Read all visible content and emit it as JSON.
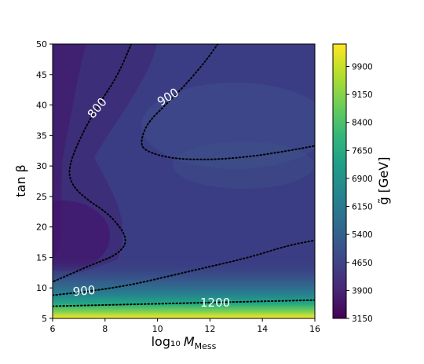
{
  "chart_data": {
    "type": "heatmap",
    "subtype": "filled-contour",
    "xlabel": "log₁₀",
    "xlabel_symbol": "M",
    "xlabel_subscript": "Mess",
    "ylabel": "tan β",
    "colorbar_label": "g̃ [GeV]",
    "xlim": [
      6,
      16
    ],
    "ylim": [
      5,
      50
    ],
    "xticks": [
      "6",
      "8",
      "10",
      "12",
      "14",
      "16"
    ],
    "yticks": [
      "5",
      "10",
      "15",
      "20",
      "25",
      "30",
      "35",
      "40",
      "45",
      "50"
    ],
    "colorbar_ticks": [
      "3150",
      "3900",
      "4650",
      "5400",
      "6150",
      "6900",
      "7650",
      "8400",
      "9150",
      "9900"
    ],
    "colorbar_range": [
      3150,
      10500
    ],
    "colormap": "viridis",
    "grid": false,
    "contours": [
      {
        "level": 800,
        "label": "800",
        "style": "dotted",
        "points": [
          [
            9.0,
            50
          ],
          [
            8.5,
            45
          ],
          [
            7.9,
            41
          ],
          [
            7.2,
            36
          ],
          [
            6.6,
            30
          ],
          [
            6.7,
            27
          ],
          [
            7.3,
            24.5
          ],
          [
            8.2,
            22
          ],
          [
            8.9,
            18
          ],
          [
            8.5,
            15.5
          ],
          [
            7.6,
            14
          ],
          [
            6.0,
            11
          ]
        ]
      },
      {
        "level": 900,
        "label": "900",
        "style": "dotted",
        "points": [
          [
            12.3,
            50
          ],
          [
            11.8,
            47
          ],
          [
            11.0,
            43
          ],
          [
            10.3,
            40
          ],
          [
            9.6,
            37
          ],
          [
            9.35,
            34
          ],
          [
            9.5,
            32.5
          ],
          [
            10.5,
            31.2
          ],
          [
            12.0,
            31
          ],
          [
            13.5,
            31.5
          ],
          [
            15.0,
            32.5
          ],
          [
            16.0,
            33.3
          ]
        ]
      },
      {
        "level": 900,
        "label": "900",
        "style": "dotted",
        "points": [
          [
            6.0,
            8.8
          ],
          [
            7.5,
            9.5
          ],
          [
            9.0,
            10.5
          ],
          [
            10.5,
            12.0
          ],
          [
            12.0,
            13.5
          ],
          [
            13.5,
            15.0
          ],
          [
            15.0,
            17.0
          ],
          [
            16.0,
            17.8
          ]
        ]
      },
      {
        "level": 1200,
        "label": "1200",
        "style": "dotted",
        "points": [
          [
            6.0,
            7.0
          ],
          [
            8.0,
            7.2
          ],
          [
            10.0,
            7.4
          ],
          [
            12.0,
            7.6
          ],
          [
            14.0,
            7.8
          ],
          [
            16.0,
            8.0
          ]
        ]
      }
    ],
    "field_description": "minimum ~3500 near (6-8, 15-25); ~4000-4500 across most of the plane; rises steeply below tan beta ~ 8 to ~10000 at tan beta = 5"
  }
}
